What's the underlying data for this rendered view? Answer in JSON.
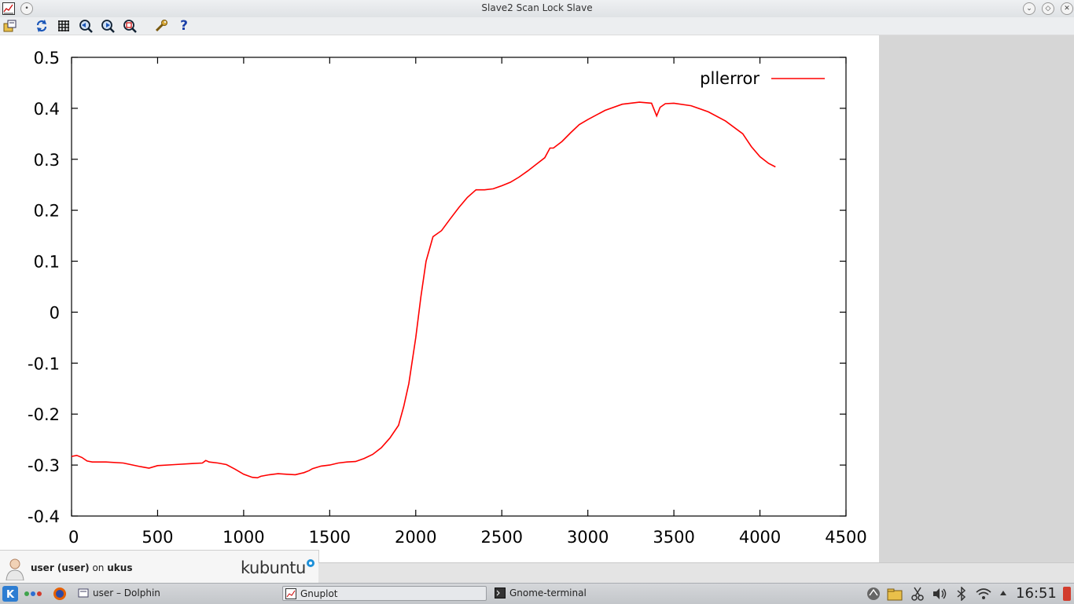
{
  "window": {
    "title": "Slave2 Scan Lock Slave"
  },
  "toolbar": {
    "items": [
      "export-icon",
      "replot-icon",
      "grid-icon",
      "zoom-back-icon",
      "zoom-forward-icon",
      "zoom-autoscale-icon",
      "options-icon",
      "help-icon"
    ],
    "help_label": "?"
  },
  "chart_data": {
    "type": "line",
    "title": "",
    "xlabel": "",
    "ylabel": "",
    "xlim": [
      0,
      4500
    ],
    "ylim": [
      -0.4,
      0.5
    ],
    "xticks": [
      "0",
      "500",
      "1000",
      "1500",
      "2000",
      "2500",
      "3000",
      "3500",
      "4000",
      "4500"
    ],
    "yticks": [
      "0.5",
      "0.4",
      "0.3",
      "0.2",
      "0.1",
      "0",
      "-0.1",
      "-0.2",
      "-0.3",
      "-0.4"
    ],
    "grid": false,
    "legend": "top-right",
    "series": [
      {
        "name": "pllerror",
        "color": "#ff0000",
        "x": [
          0,
          30,
          60,
          90,
          120,
          200,
          300,
          400,
          450,
          500,
          600,
          700,
          760,
          780,
          800,
          850,
          900,
          950,
          1000,
          1050,
          1080,
          1100,
          1150,
          1200,
          1250,
          1300,
          1350,
          1380,
          1400,
          1450,
          1500,
          1550,
          1600,
          1650,
          1700,
          1750,
          1800,
          1850,
          1900,
          1930,
          1960,
          2000,
          2030,
          2060,
          2100,
          2150,
          2200,
          2250,
          2300,
          2350,
          2400,
          2450,
          2500,
          2550,
          2600,
          2650,
          2700,
          2750,
          2780,
          2800,
          2850,
          2900,
          2950,
          3000,
          3100,
          3200,
          3300,
          3370,
          3400,
          3420,
          3450,
          3500,
          3600,
          3700,
          3800,
          3900,
          3950,
          4000,
          4050,
          4090
        ],
        "y": [
          -0.283,
          -0.281,
          -0.285,
          -0.292,
          -0.294,
          -0.294,
          -0.296,
          -0.303,
          -0.306,
          -0.301,
          -0.299,
          -0.297,
          -0.296,
          -0.291,
          -0.294,
          -0.296,
          -0.299,
          -0.308,
          -0.318,
          -0.324,
          -0.325,
          -0.322,
          -0.319,
          -0.317,
          -0.318,
          -0.319,
          -0.315,
          -0.311,
          -0.307,
          -0.302,
          -0.3,
          -0.296,
          -0.294,
          -0.293,
          -0.287,
          -0.279,
          -0.266,
          -0.247,
          -0.222,
          -0.185,
          -0.14,
          -0.05,
          0.03,
          0.1,
          0.148,
          0.16,
          0.183,
          0.205,
          0.225,
          0.24,
          0.24,
          0.242,
          0.248,
          0.255,
          0.265,
          0.277,
          0.29,
          0.303,
          0.322,
          0.322,
          0.335,
          0.352,
          0.368,
          0.378,
          0.396,
          0.408,
          0.412,
          0.41,
          0.385,
          0.402,
          0.409,
          0.41,
          0.405,
          0.393,
          0.375,
          0.35,
          0.325,
          0.305,
          0.292,
          0.285
        ]
      }
    ]
  },
  "userpanel": {
    "user": "user (user)",
    "on": "on",
    "host": "ukus",
    "brand": "kubuntu"
  },
  "taskbar": {
    "tasks": [
      {
        "label": "user – Dolphin"
      },
      {
        "label": "Gnuplot"
      },
      {
        "label": "Gnome-terminal"
      }
    ],
    "clock": "16:51"
  }
}
